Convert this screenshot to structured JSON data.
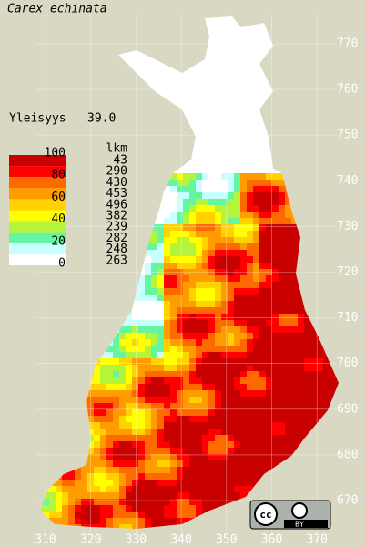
{
  "title": "Carex echinata",
  "frequency": {
    "label": "Yleisyys",
    "value": "39.0"
  },
  "legend": {
    "scale_labels": [
      "100",
      "80",
      "60",
      "40",
      "20",
      "0"
    ],
    "colors": [
      "#c80000",
      "#ff0000",
      "#ff6a00",
      "#ff9c00",
      "#ffd200",
      "#ffff00",
      "#b4f53c",
      "#64f5a0",
      "#c8ffff",
      "#ffffff"
    ],
    "count_header": "lkm",
    "counts": [
      43,
      290,
      430,
      453,
      496,
      382,
      239,
      282,
      248,
      263
    ]
  },
  "y_labels": [
    770,
    760,
    750,
    740,
    730,
    720,
    710,
    700,
    690,
    680,
    670
  ],
  "x_labels": [
    310,
    320,
    330,
    340,
    350,
    360,
    370
  ],
  "license": {
    "icon": "cc",
    "badge": "BY"
  }
}
